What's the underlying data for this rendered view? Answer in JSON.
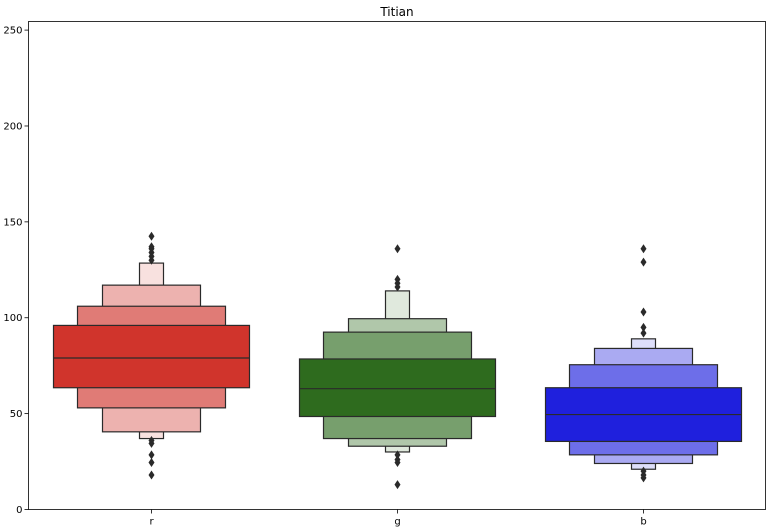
{
  "chart_data": {
    "type": "boxen",
    "title": "Titian",
    "xlabel": "",
    "ylabel": "",
    "categories": [
      "r",
      "g",
      "b"
    ],
    "ylim": [
      0,
      255
    ],
    "yticks": [
      0,
      50,
      100,
      150,
      200,
      250
    ],
    "grid": false,
    "legend": "none",
    "series": [
      {
        "category": "r",
        "color": "#d0342c",
        "median": 79,
        "levels": [
          [
            63.5,
            96
          ],
          [
            53,
            106
          ],
          [
            40.5,
            117
          ],
          [
            37,
            128.5
          ]
        ],
        "outliers": [
          18,
          24.5,
          28.5,
          34.5,
          36,
          130,
          132,
          134,
          136,
          137,
          142.5
        ]
      },
      {
        "category": "g",
        "color": "#2e6b1e",
        "median": 63,
        "levels": [
          [
            48.5,
            78.5
          ],
          [
            37,
            92.5
          ],
          [
            33,
            99.5
          ],
          [
            30,
            114
          ]
        ],
        "outliers": [
          13,
          24.5,
          26,
          28.5,
          116,
          118,
          120,
          136
        ]
      },
      {
        "category": "b",
        "color": "#1f20dd",
        "median": 49.5,
        "levels": [
          [
            35.5,
            63.5
          ],
          [
            28.5,
            75.5
          ],
          [
            24,
            84
          ],
          [
            21,
            89
          ]
        ],
        "outliers": [
          16.5,
          18,
          20,
          92,
          95,
          103,
          129,
          136
        ]
      }
    ]
  }
}
